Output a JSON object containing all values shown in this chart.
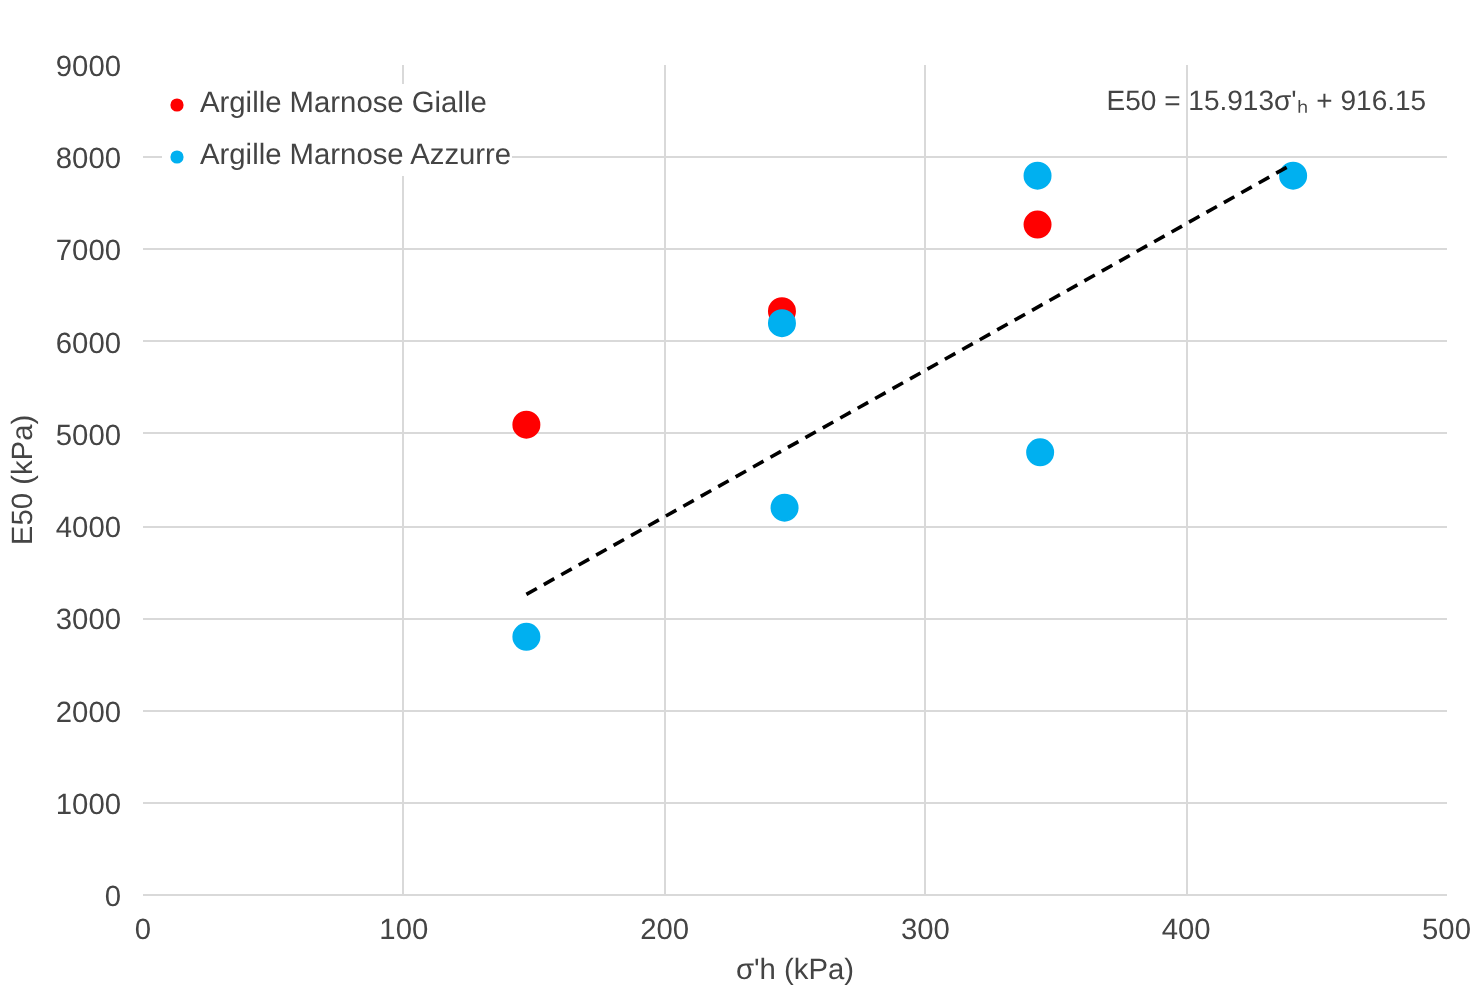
{
  "chart_data": {
    "type": "scatter",
    "xlabel": "σ'h (kPa)",
    "ylabel": "E50 (kPa)",
    "xlim": [
      0,
      500
    ],
    "xticks": [
      0,
      100,
      200,
      300,
      400,
      500
    ],
    "ylim": [
      0,
      9000
    ],
    "yticks": [
      0,
      1000,
      2000,
      3000,
      4000,
      5000,
      6000,
      7000,
      8000,
      9000
    ],
    "grid": true,
    "legend": "top left",
    "marker": "circle",
    "series": [
      {
        "name": "Argille Marnose Gialle",
        "color": "#ff0000",
        "x": [
          147,
          245,
          343
        ],
        "values": [
          5100,
          6330,
          7270
        ]
      },
      {
        "name": "Argille Marnose Azzurre",
        "color": "#00b0f0",
        "x": [
          147,
          245,
          246,
          343,
          344,
          441
        ],
        "values": [
          2800,
          6200,
          4200,
          7800,
          4800,
          7800
        ]
      },
      {
        "type": "line",
        "color": "#000000",
        "line_style": "dashed",
        "marker": "none",
        "x": [
          147,
          441
        ],
        "values": [
          3260,
          7930
        ]
      }
    ],
    "annotations": [
      "E50 = 15.913σ'ₕ + 916.15"
    ]
  }
}
